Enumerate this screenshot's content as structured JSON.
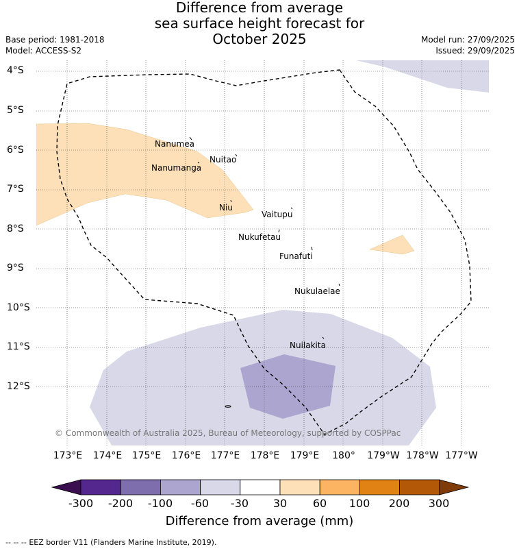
{
  "header": {
    "title_lines": [
      "Difference from average",
      "sea surface height forecast for",
      "October 2025"
    ],
    "base_period": "Base period: 1981-2018",
    "model": "Model: ACCESS-S2",
    "model_run": "Model run: 27/09/2025",
    "issued": "Issued: 29/09/2025"
  },
  "map": {
    "latitude_labels": [
      "4°S",
      "5°S",
      "6°S",
      "7°S",
      "8°S",
      "9°S",
      "10°S",
      "11°S",
      "12°S"
    ],
    "longitude_labels": [
      "173°E",
      "174°E",
      "175°E",
      "176°E",
      "177°E",
      "178°E",
      "179°E",
      "180°",
      "179°W",
      "178°W",
      "177°W"
    ],
    "islands": [
      "Nanumea",
      "Nuitao",
      "Nanumanga",
      "Niu",
      "Vaitupu",
      "Nukufetau",
      "Funafuti",
      "Nukulaelae",
      "Nuilakita"
    ],
    "copyright": "© Commonwealth of Australia 2025, Bureau of Meteorology, supported by COSPPac"
  },
  "colorbar": {
    "labels": [
      "-300",
      "-200",
      "-100",
      "-60",
      "-30",
      "30",
      "60",
      "100",
      "200",
      "300"
    ],
    "colors": [
      "#3b0f4f",
      "#54278f",
      "#7e6ead",
      "#aba5d0",
      "#d8d8e8",
      "#ffffff",
      "#fde0b7",
      "#fdb462",
      "#e08214",
      "#b35806",
      "#7f3b08"
    ],
    "title": "Difference from average (mm)"
  },
  "footer": {
    "eez_note": "EEZ border V11 (Flanders Marine Institute, 2019).",
    "eez_symbol": "-- -- --"
  }
}
